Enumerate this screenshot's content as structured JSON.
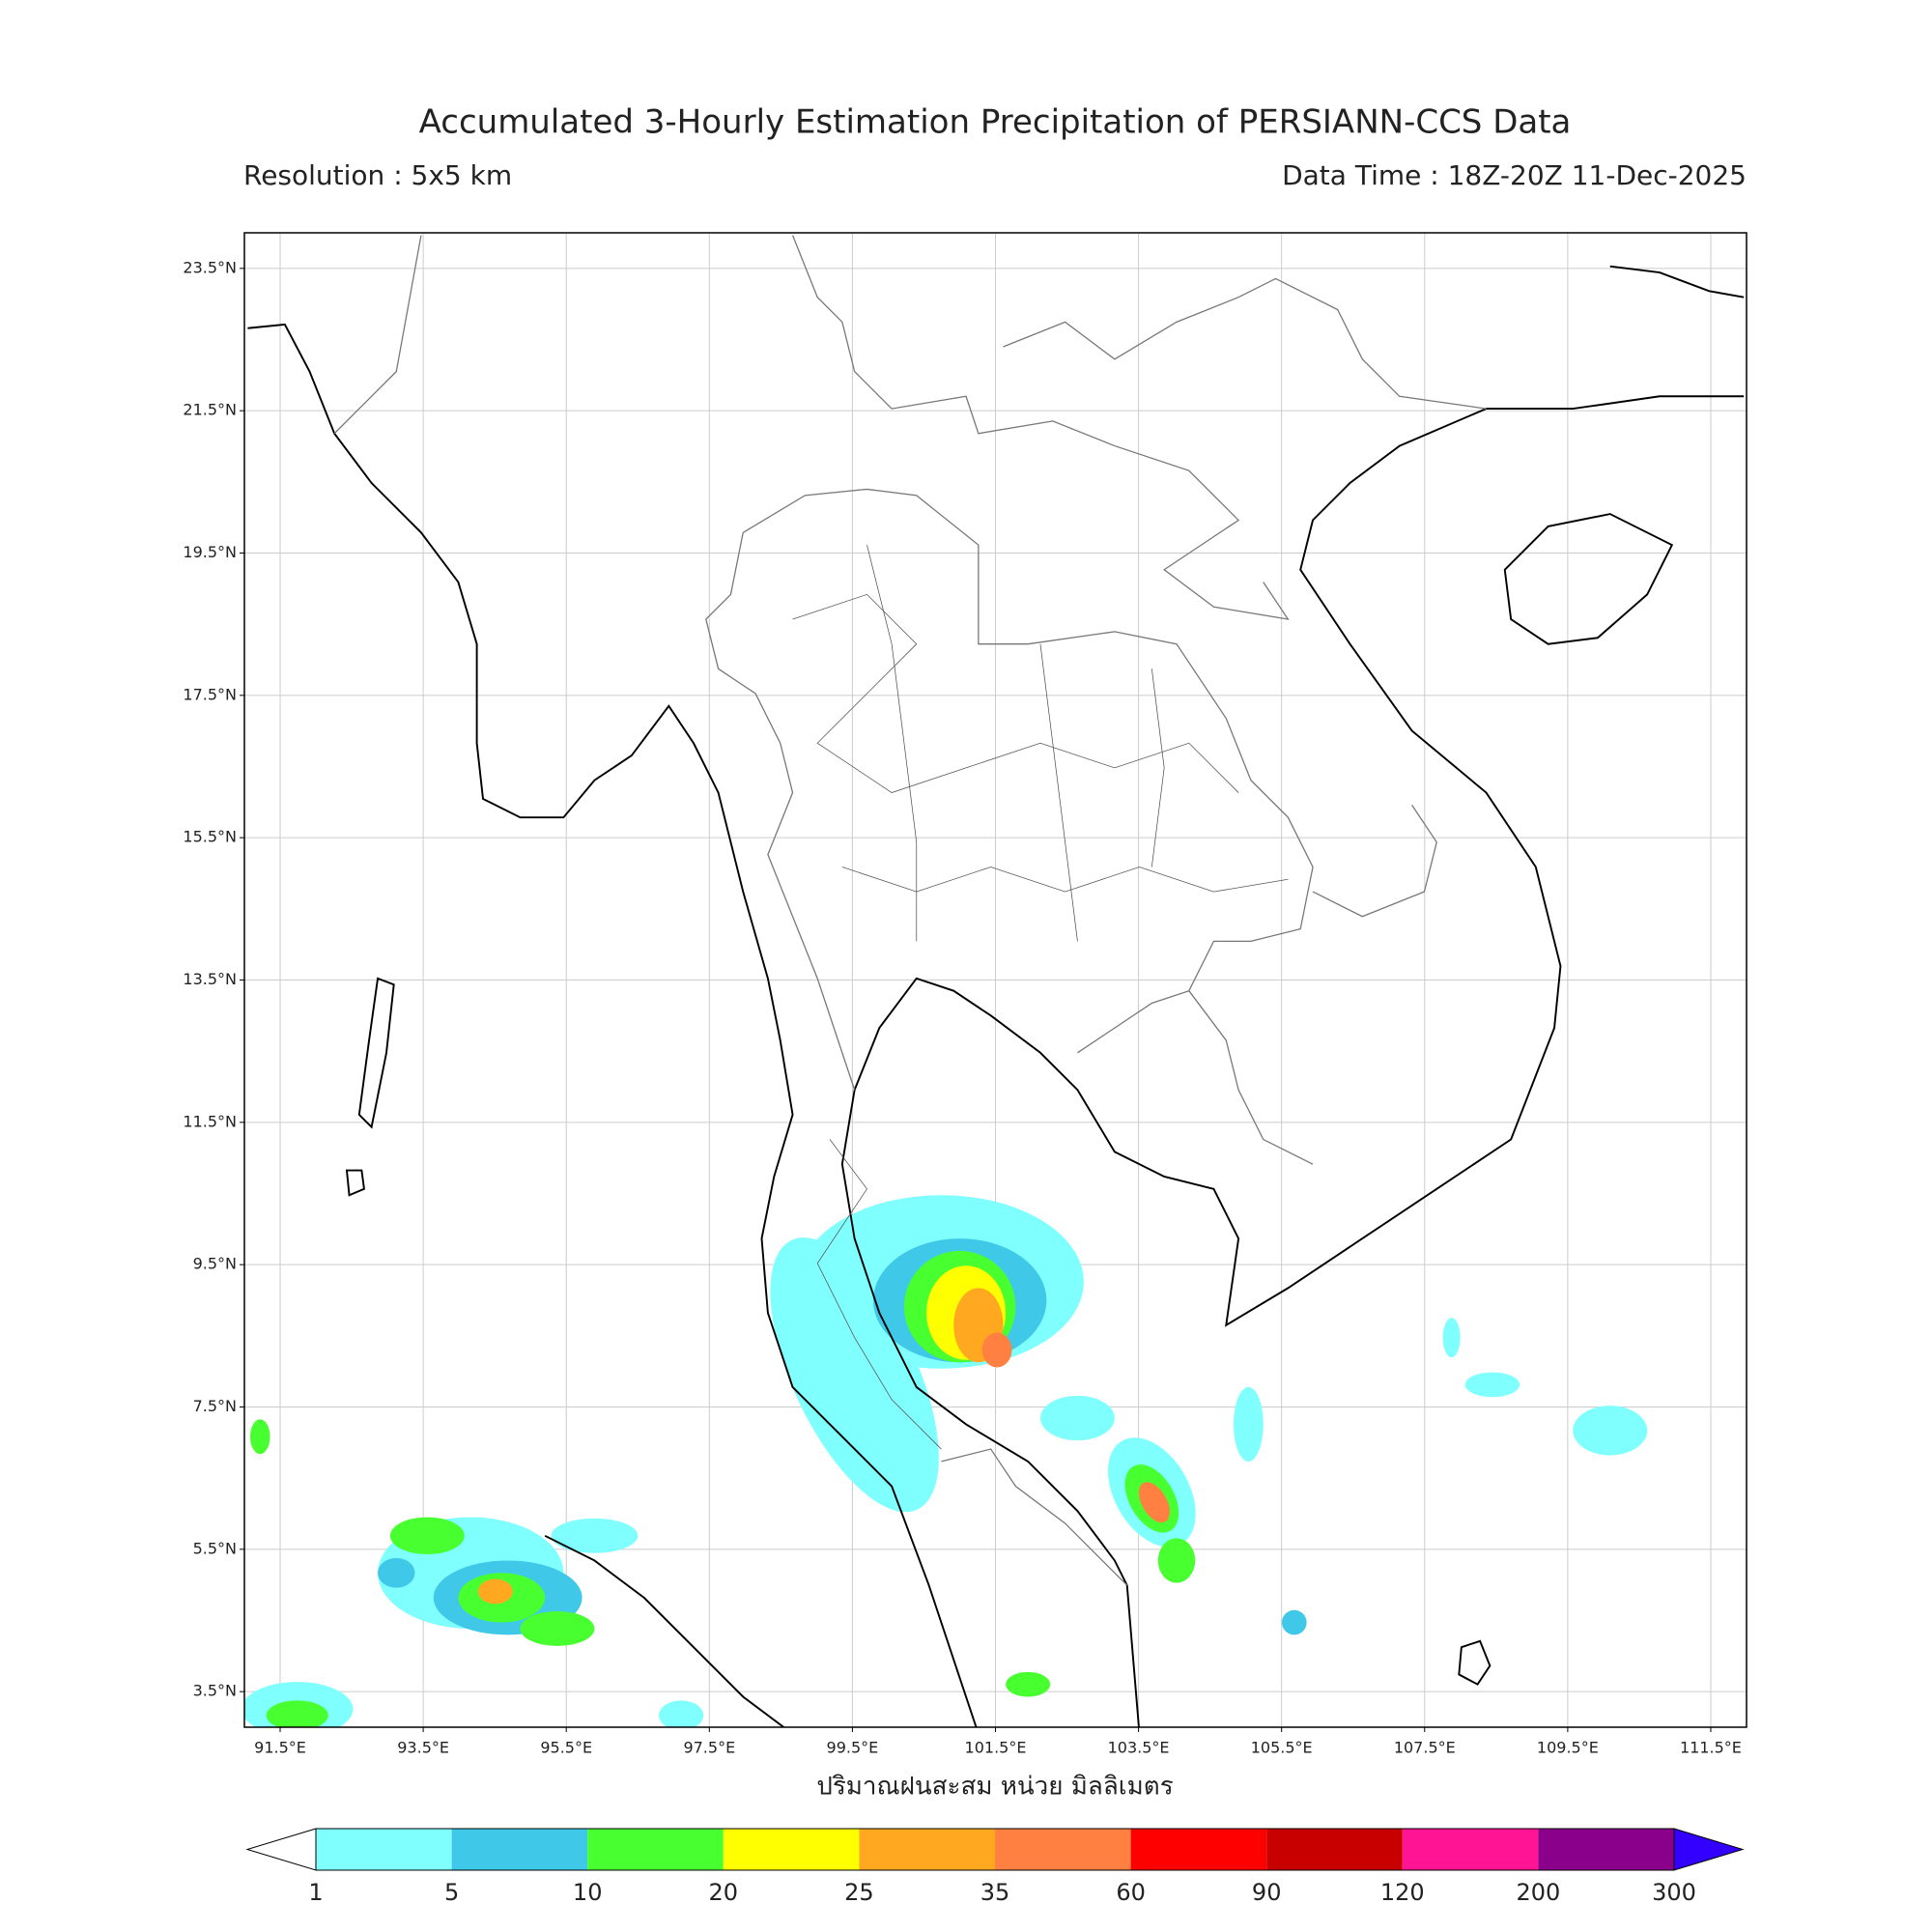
{
  "header": {
    "title": "Accumulated 3-Hourly Estimation Precipitation of PERSIANN-CCS Data",
    "resolution": "Resolution : 5x5 km",
    "data_time": "Data Time : 18Z-20Z 11-Dec-2025"
  },
  "map": {
    "xlim": [
      91,
      112
    ],
    "ylim": [
      3,
      24
    ],
    "lon_ticks": [
      {
        "value": 91.5,
        "label": "91.5°E"
      },
      {
        "value": 93.5,
        "label": "93.5°E"
      },
      {
        "value": 95.5,
        "label": "95.5°E"
      },
      {
        "value": 97.5,
        "label": "97.5°E"
      },
      {
        "value": 99.5,
        "label": "99.5°E"
      },
      {
        "value": 101.5,
        "label": "101.5°E"
      },
      {
        "value": 103.5,
        "label": "103.5°E"
      },
      {
        "value": 105.5,
        "label": "105.5°E"
      },
      {
        "value": 107.5,
        "label": "107.5°E"
      },
      {
        "value": 109.5,
        "label": "109.5°E"
      },
      {
        "value": 111.5,
        "label": "111.5°E"
      }
    ],
    "lat_ticks": [
      {
        "value": 23.5,
        "label": "23.5°N"
      },
      {
        "value": 21.5,
        "label": "21.5°N"
      },
      {
        "value": 19.5,
        "label": "19.5°N"
      },
      {
        "value": 17.5,
        "label": "17.5°N"
      },
      {
        "value": 15.5,
        "label": "15.5°N"
      },
      {
        "value": 13.5,
        "label": "13.5°N"
      },
      {
        "value": 11.5,
        "label": "11.5°N"
      },
      {
        "value": 9.5,
        "label": "9.5°N"
      },
      {
        "value": 7.5,
        "label": "7.5°N"
      },
      {
        "value": 5.5,
        "label": "5.5°N"
      },
      {
        "value": 3.5,
        "label": "3.5°N"
      }
    ],
    "grid": true
  },
  "colorbar": {
    "label": "ปริมาณฝนสะสม หน่วย มิลลิเมตร",
    "levels": [
      1,
      5,
      10,
      20,
      25,
      35,
      60,
      90,
      120,
      200,
      300
    ],
    "colors": [
      "#80ffff",
      "#40c8e8",
      "#48ff30",
      "#ffff00",
      "#ffa820",
      "#ff8040",
      "#ff0000",
      "#c80000",
      "#ff1493",
      "#8b008b"
    ],
    "under_color": "#ffffff",
    "over_color": "#3300ff"
  }
}
